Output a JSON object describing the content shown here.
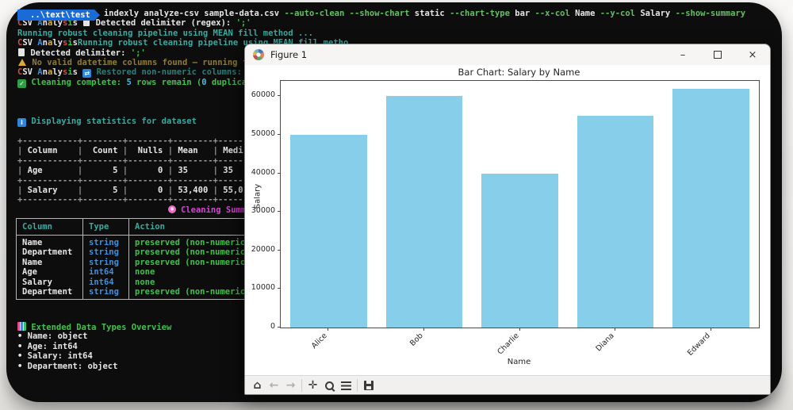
{
  "palette": {
    "terminal_bg": "#0d0d0d",
    "prompt_blue": "#1a6bd8",
    "teal": "#3aa99f",
    "green": "#41c14c",
    "flag_green": "#62c162",
    "olive": "#8e7c34",
    "magenta": "#d247d2",
    "type_blue": "#4090dc",
    "bar_fill": "#87ceeb",
    "toolbar_bg": "#f1f0ef"
  },
  "terminal": {
    "main_lines": [
      [
        {
          "t": "..\\text\\test",
          "c": "prompt",
          "n": "prompt-badge"
        },
        {
          "t": "indexly analyze-csv sample-data.csv ",
          "c": "w"
        },
        {
          "t": "--auto-clean",
          "c": "fg"
        },
        {
          "t": " ",
          "c": "w"
        },
        {
          "t": "--show-chart",
          "c": "fg"
        },
        {
          "t": " static ",
          "c": "w"
        },
        {
          "t": "--chart-type",
          "c": "fg"
        },
        {
          "t": " bar ",
          "c": "w"
        },
        {
          "t": "--x-col",
          "c": "fg"
        },
        {
          "t": " Name ",
          "c": "w"
        },
        {
          "t": "--y-col",
          "c": "fg"
        },
        {
          "t": " Salary ",
          "c": "w"
        },
        {
          "t": "--show-summary",
          "c": "fg"
        }
      ],
      [
        {
          "t": "C",
          "c": "red"
        },
        {
          "t": "SV ",
          "c": "w"
        },
        {
          "t": "A",
          "c": "blue"
        },
        {
          "t": "n",
          "c": "w"
        },
        {
          "t": "a",
          "c": "yel"
        },
        {
          "t": "ly",
          "c": "w"
        },
        {
          "t": "s",
          "c": "red"
        },
        {
          "t": "i",
          "c": "green"
        },
        {
          "t": "s ",
          "c": "w"
        },
        {
          "t": "",
          "c": "icon-doc",
          "n": "document-icon"
        },
        {
          "t": " Detected delimiter (regex): ",
          "c": "w"
        },
        {
          "t": "';'",
          "c": "green"
        }
      ],
      [
        {
          "t": "Running robust cleaning pipeline using MEAN fill method ...",
          "c": "teal"
        }
      ],
      [
        {
          "t": "C",
          "c": "red"
        },
        {
          "t": "SV ",
          "c": "w"
        },
        {
          "t": "A",
          "c": "blue"
        },
        {
          "t": "n",
          "c": "w"
        },
        {
          "t": "a",
          "c": "yel"
        },
        {
          "t": "ly",
          "c": "w"
        },
        {
          "t": "s",
          "c": "red"
        },
        {
          "t": "i",
          "c": "green"
        },
        {
          "t": "s",
          "c": "w"
        },
        {
          "t": "Running robust cleaning pipeline using MEAN fill metho",
          "c": "teal"
        }
      ],
      [
        {
          "t": "",
          "c": "icon-doc",
          "n": "document-icon"
        },
        {
          "t": " Detected delimiter: ",
          "c": "w"
        },
        {
          "t": "';'",
          "c": "green"
        }
      ],
      [
        {
          "t": "",
          "c": "icon-warn",
          "n": "warning-icon"
        },
        {
          "t": " No valid datetime columns found — running f",
          "c": "olive"
        }
      ],
      [
        {
          "t": "C",
          "c": "red"
        },
        {
          "t": "SV ",
          "c": "w"
        },
        {
          "t": "A",
          "c": "blue"
        },
        {
          "t": "n",
          "c": "w"
        },
        {
          "t": "a",
          "c": "yel"
        },
        {
          "t": "ly",
          "c": "w"
        },
        {
          "t": "s",
          "c": "red"
        },
        {
          "t": "i",
          "c": "green"
        },
        {
          "t": "s ",
          "c": "w"
        },
        {
          "t": "⇄",
          "c": "icon-loop",
          "n": "sync-icon"
        },
        {
          "t": " Restored non-numeric columns: N",
          "c": "dteal"
        }
      ],
      [
        {
          "t": "✓",
          "c": "icon-check",
          "n": "check-icon"
        },
        {
          "t": " Cleaning complete: ",
          "c": "green"
        },
        {
          "t": "5",
          "c": "cyan"
        },
        {
          "t": " rows remain (",
          "c": "green"
        },
        {
          "t": "0",
          "c": "cyan"
        },
        {
          "t": " duplica",
          "c": "green"
        }
      ],
      [],
      [],
      [],
      [
        {
          "t": "i",
          "c": "icon-info",
          "n": "info-icon"
        },
        {
          "t": " Displaying statistics for dataset",
          "c": "teal"
        }
      ],
      [],
      [
        {
          "t": "+-----------+--------+--------+--------+------",
          "c": "gray"
        }
      ],
      [
        {
          "t": "| ",
          "c": "gray"
        },
        {
          "t": "Column    ",
          "c": "w"
        },
        {
          "t": "|",
          "c": "gray"
        },
        {
          "t": "  Count ",
          "c": "w"
        },
        {
          "t": "|",
          "c": "gray"
        },
        {
          "t": "  Nulls ",
          "c": "w"
        },
        {
          "t": "|",
          "c": "gray"
        },
        {
          "t": " Mean   ",
          "c": "w"
        },
        {
          "t": "|",
          "c": "gray"
        },
        {
          "t": " Medi",
          "c": "w"
        }
      ],
      [
        {
          "t": "+-----------+--------+--------+--------+------",
          "c": "gray"
        }
      ],
      [
        {
          "t": "| ",
          "c": "gray"
        },
        {
          "t": "Age       ",
          "c": "w"
        },
        {
          "t": "|",
          "c": "gray"
        },
        {
          "t": "      5 ",
          "c": "w"
        },
        {
          "t": "|",
          "c": "gray"
        },
        {
          "t": "      0 ",
          "c": "w"
        },
        {
          "t": "|",
          "c": "gray"
        },
        {
          "t": " 35     ",
          "c": "w"
        },
        {
          "t": "|",
          "c": "gray"
        },
        {
          "t": " 35",
          "c": "w"
        }
      ],
      [
        {
          "t": "+-----------+--------+--------+--------+------",
          "c": "gray"
        }
      ],
      [
        {
          "t": "| ",
          "c": "gray"
        },
        {
          "t": "Salary    ",
          "c": "w"
        },
        {
          "t": "|",
          "c": "gray"
        },
        {
          "t": "      5 ",
          "c": "w"
        },
        {
          "t": "|",
          "c": "gray"
        },
        {
          "t": "      0 ",
          "c": "w"
        },
        {
          "t": "|",
          "c": "gray"
        },
        {
          "t": " 53,400 ",
          "c": "w"
        },
        {
          "t": "|",
          "c": "gray"
        },
        {
          "t": " 55,0",
          "c": "w"
        }
      ],
      [
        {
          "t": "+-----------+--------+--------+--------+------",
          "c": "gray"
        }
      ],
      [
        {
          "t": "                              ",
          "c": "w"
        },
        {
          "t": "",
          "c": "icon-flower",
          "n": "flower-icon"
        },
        {
          "t": " Cleaning Summ",
          "c": "mag"
        }
      ]
    ],
    "extended_lines": [
      [
        {
          "t": "",
          "c": "icon-chart",
          "n": "bar-chart-icon"
        },
        {
          "t": " Extended Data Types Overview",
          "c": "green"
        }
      ],
      [
        {
          "t": "• Name: object",
          "c": "w"
        }
      ],
      [
        {
          "t": "• Age: int64",
          "c": "w"
        }
      ],
      [
        {
          "t": "• Salary: int64",
          "c": "w"
        }
      ],
      [
        {
          "t": "• Department: object",
          "c": "w"
        }
      ]
    ],
    "summary_table": {
      "columns": [
        "Column",
        "Type",
        "Action"
      ],
      "rows": [
        [
          "Name",
          "string",
          "preserved (non-numeric"
        ],
        [
          "Department",
          "string",
          "preserved (non-numeric"
        ],
        [
          "Name",
          "string",
          "preserved (non-numeric"
        ],
        [
          "Age",
          "int64",
          "none"
        ],
        [
          "Salary",
          "int64",
          "none"
        ],
        [
          "Department",
          "string",
          "preserved (non-numeric"
        ]
      ]
    }
  },
  "figure": {
    "title": "Figure 1",
    "controls": {
      "minimize": "–",
      "close": "×"
    },
    "toolbar_icons": {
      "home": "⌂",
      "back": "←",
      "forward": "→",
      "pan": "✛"
    }
  },
  "chart_data": {
    "type": "bar",
    "title": "Bar Chart: Salary by Name",
    "xlabel": "Name",
    "ylabel": "Salary",
    "categories": [
      "Alice",
      "Bob",
      "Charlie",
      "Diana",
      "Edward"
    ],
    "values": [
      50000,
      60000,
      40000,
      55000,
      62000
    ],
    "ylim": [
      0,
      64000
    ],
    "yticks": [
      0,
      10000,
      20000,
      30000,
      40000,
      50000,
      60000
    ],
    "bar_color": "#87ceeb",
    "grid": false,
    "legend": false
  }
}
